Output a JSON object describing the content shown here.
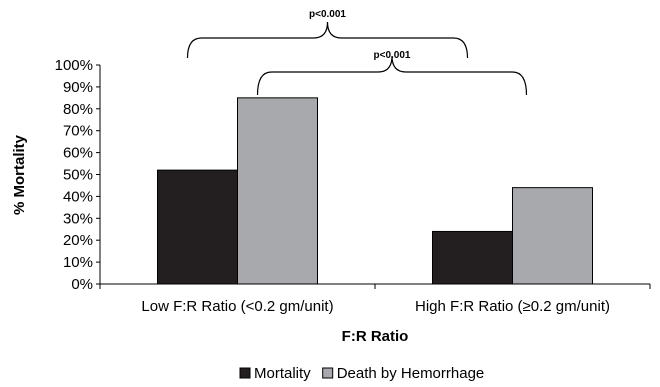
{
  "chart_data": {
    "type": "bar",
    "categories": [
      "Low F:R Ratio (<0.2 gm/unit)",
      "High F:R Ratio (≥0.2 gm/unit)"
    ],
    "series": [
      {
        "name": "Mortality",
        "values": [
          52,
          24
        ],
        "color": "#231f20"
      },
      {
        "name": "Death by Hemorrhage",
        "values": [
          85,
          44
        ],
        "color": "#a7a9ac"
      }
    ],
    "xlabel": "F:R Ratio",
    "ylabel": "% Mortality",
    "ylim": [
      0,
      100
    ],
    "yticks": [
      "0%",
      "10%",
      "20%",
      "30%",
      "40%",
      "50%",
      "60%",
      "70%",
      "80%",
      "90%",
      "100%"
    ],
    "grid": false,
    "legend_position": "bottom",
    "annotations": [
      {
        "label": "p<0.001",
        "spans": "Mortality: Low F:R Ratio vs High F:R Ratio"
      },
      {
        "label": "p<0.001",
        "spans": "Death by Hemorrhage: Low F:R Ratio vs High F:R Ratio"
      }
    ]
  }
}
